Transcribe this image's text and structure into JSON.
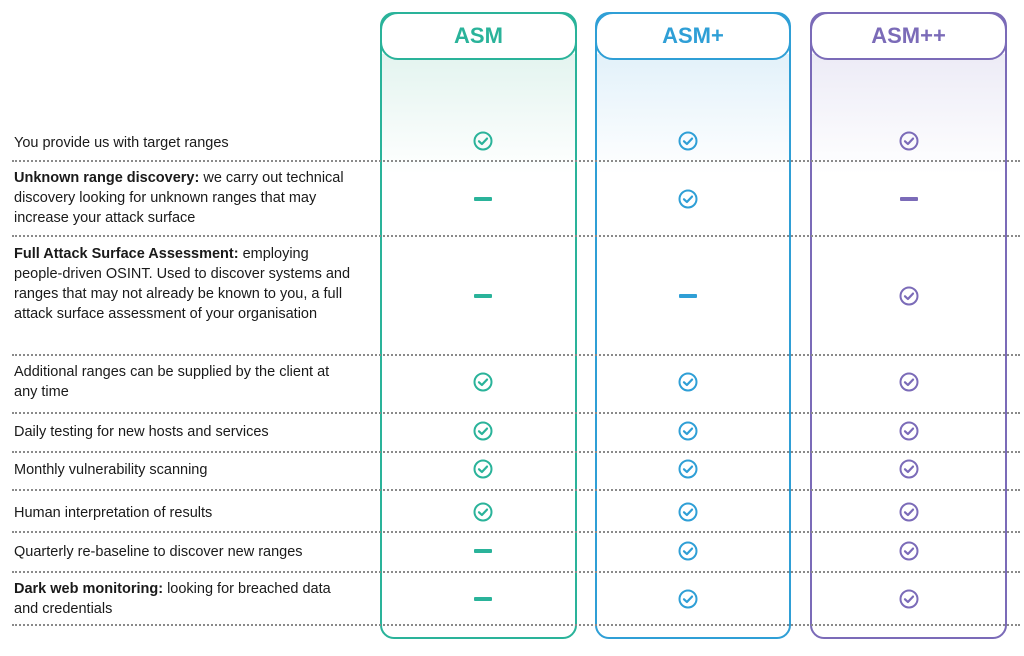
{
  "colors": {
    "asm": "#2ab39a",
    "asm_plus": "#2f9fd6",
    "asm_plus_plus": "#7b6bb8"
  },
  "tiers": [
    {
      "name": "ASM",
      "color": "#2ab39a"
    },
    {
      "name": "ASM+",
      "color": "#2f9fd6"
    },
    {
      "name": "ASM++",
      "color": "#7b6bb8"
    }
  ],
  "rows": [
    {
      "label_bold": "",
      "label": "You provide us with target ranges",
      "asm": "check",
      "asm_plus": "check",
      "asm_plus_plus": "check"
    },
    {
      "label_bold": "Unknown range discovery:",
      "label": " we carry out technical discovery looking for unknown ranges that may increase your attack surface",
      "asm": "dash",
      "asm_plus": "check",
      "asm_plus_plus": "dash"
    },
    {
      "label_bold": "Full Attack Surface Assessment:",
      "label": " employing people-driven OSINT. Used to discover systems and ranges that may not already be known to you, a full attack surface assessment of your organisation",
      "asm": "dash",
      "asm_plus": "dash",
      "asm_plus_plus": "check"
    },
    {
      "label_bold": "",
      "label": "Additional ranges can be supplied by the client at any time",
      "asm": "check",
      "asm_plus": "check",
      "asm_plus_plus": "check"
    },
    {
      "label_bold": "",
      "label": "Daily testing for new hosts and services",
      "asm": "check",
      "asm_plus": "check",
      "asm_plus_plus": "check"
    },
    {
      "label_bold": "",
      "label": "Monthly vulnerability scanning",
      "asm": "check",
      "asm_plus": "check",
      "asm_plus_plus": "check"
    },
    {
      "label_bold": "",
      "label": "Human interpretation of results",
      "asm": "check",
      "asm_plus": "check",
      "asm_plus_plus": "check"
    },
    {
      "label_bold": "",
      "label": "Quarterly re-baseline to discover new ranges",
      "asm": "dash",
      "asm_plus": "check",
      "asm_plus_plus": "check"
    },
    {
      "label_bold": "Dark web monitoring:",
      "label": " looking for breached data and credentials",
      "asm": "dash",
      "asm_plus": "check",
      "asm_plus_plus": "check"
    }
  ]
}
